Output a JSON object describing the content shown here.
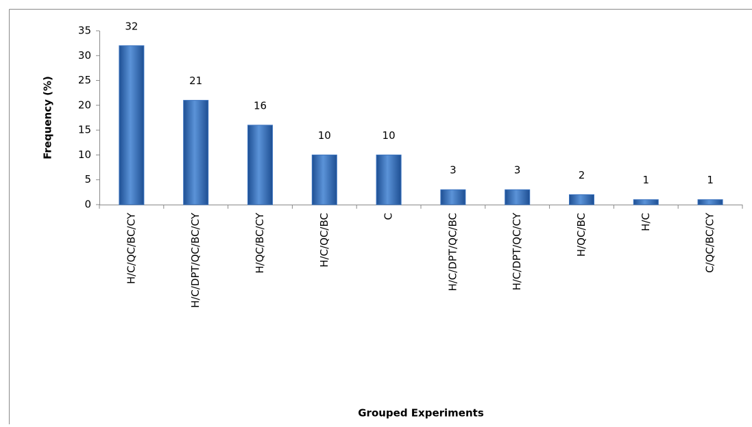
{
  "chart_data": {
    "type": "bar",
    "x_label": "Grouped Experiments",
    "y_label": "Frequency (%)",
    "categories": [
      "H/C/QC/BC/CY",
      "H/C/DPT/QC/BC/CY",
      "H/QC/BC/CY",
      "H/C/QC/BC",
      "C",
      "H/C/DPT/QC/BC",
      "H/C/DPT/QC/CY",
      "H/QC/BC",
      "H/C",
      "C/QC/BC/CY"
    ],
    "values": [
      32,
      21,
      16,
      10,
      10,
      3,
      3,
      2,
      1,
      1
    ],
    "color": "#3a73c0",
    "ylim": [
      0,
      35
    ],
    "yticks": [
      0,
      5,
      10,
      15,
      20,
      25,
      30,
      35
    ],
    "grid": false
  }
}
